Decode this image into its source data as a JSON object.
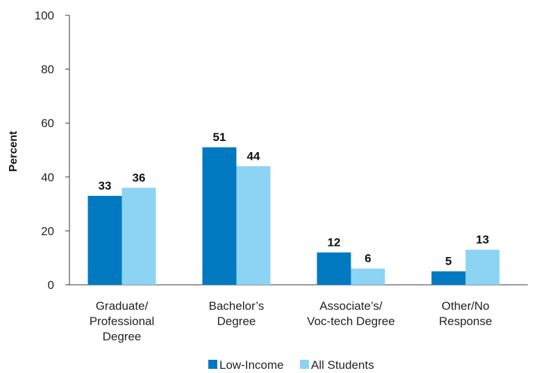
{
  "chart_data": {
    "type": "bar",
    "categories": [
      [
        "Graduate/",
        "Professional",
        "Degree"
      ],
      [
        "Bachelor’s",
        "Degree"
      ],
      [
        "Associate’s/",
        "Voc-tech Degree"
      ],
      [
        "Other/No",
        "Response"
      ]
    ],
    "series": [
      {
        "name": "Low-Income",
        "values": [
          33,
          51,
          12,
          5
        ],
        "color": "#0079c1"
      },
      {
        "name": "All Students",
        "values": [
          36,
          44,
          6,
          13
        ],
        "color": "#8dd3f4"
      }
    ],
    "ylabel": "Percent",
    "ylim": [
      0,
      100
    ],
    "yticks": [
      0,
      20,
      40,
      60,
      80,
      100
    ],
    "grid": false,
    "legend_position": "bottom-center",
    "data_labels": true
  }
}
